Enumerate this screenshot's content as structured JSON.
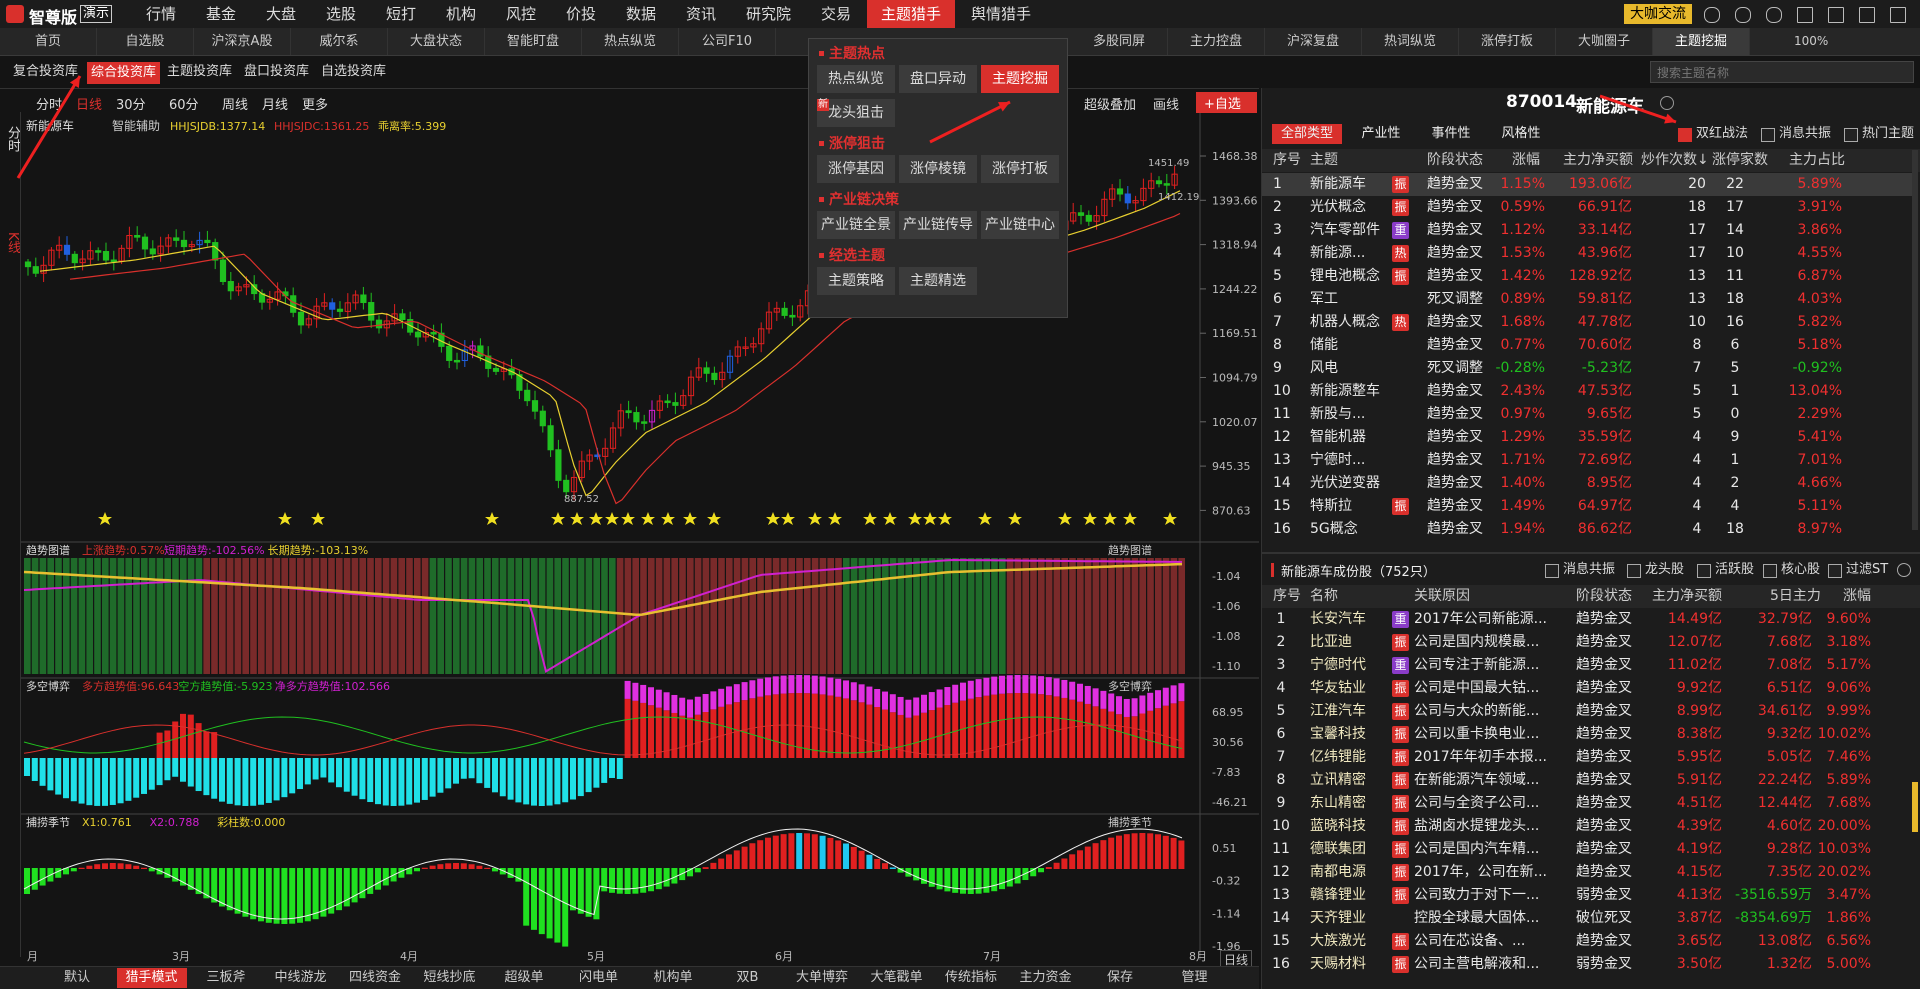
{
  "app": {
    "logo": "智尊版",
    "demo": "演示",
    "menu": [
      "行情",
      "基金",
      "大盘",
      "选股",
      "短打",
      "机构",
      "风控",
      "价投",
      "数据",
      "资讯",
      "研究院",
      "交易",
      {
        "label": "主题猎手",
        "active": true
      },
      "舆情猎手"
    ],
    "exchange": "大咖交流",
    "zoom": "100%"
  },
  "tabs": {
    "left": [
      "首页",
      "自选股",
      "沪深京A股",
      "威尔系",
      "大盘状态",
      "智能盯盘",
      "热点纵览",
      "公司F10"
    ],
    "right": [
      "多股同屏",
      "主力控盘",
      "沪深复盘",
      "热词纵览",
      "涨停打板",
      "大咖圈子",
      {
        "label": "主题挖掘",
        "active": true
      }
    ]
  },
  "libraries": [
    "复合投资库",
    {
      "label": "综合投资库",
      "active": true
    },
    "主题投资库",
    "盘口投资库",
    "自选投资库"
  ],
  "search_placeholder": "搜索主题名称",
  "chart": {
    "side_tabs": [
      "分时",
      "K线"
    ],
    "periods": [
      "分时",
      {
        "label": "日线",
        "active": true
      },
      "30分",
      "60分",
      "周线",
      "月线",
      "更多"
    ],
    "overlay": "超级叠加",
    "draw_line": "画线",
    "add_watch": "+自选",
    "name": "新能源车",
    "assist": "智能辅助",
    "indicators": [
      "HHJSJDB:1377.14",
      "HHJSJDC:1361.25",
      "乖离率:5.399"
    ],
    "price_ticks": [
      "1468.38",
      "1393.66",
      "1318.94",
      "1244.22",
      "1169.51",
      "1094.79",
      "1020.07",
      "945.35",
      "870.63"
    ],
    "high": "1451.49",
    "low": "887.52",
    "last": "1412.19",
    "panes": [
      {
        "title": "趋势图谱",
        "items": [
          "上涨趋势:0.57%",
          "短期趋势:-102.56%",
          "长期趋势:-103.13%"
        ],
        "ticks": [
          "-1.04",
          "-1.06",
          "-1.08",
          "-1.10"
        ]
      },
      {
        "title": "多空博弈",
        "items": [
          "多方趋势值:96.643",
          "空方趋势值:-5.923",
          "净多方趋势值:102.566"
        ],
        "ticks": [
          "68.95",
          "30.56",
          "-7.83",
          "-46.21"
        ]
      },
      {
        "title": "捕捞季节",
        "items": [
          "X1:0.761",
          "X2:0.788",
          "彩柱数:0.000"
        ],
        "ticks": [
          "0.51",
          "-0.32",
          "-1.14",
          "-1.96"
        ]
      }
    ],
    "months": [
      "月",
      "3月",
      "4月",
      "5月",
      "6月",
      "7月",
      "8月"
    ],
    "period": "日线"
  },
  "popup": {
    "sections": [
      {
        "title": "主题热点",
        "items": [
          "热点纵览",
          "盘口异动",
          {
            "label": "主题挖掘",
            "active": true
          },
          {
            "label": "龙头狙击",
            "badge": "新"
          }
        ]
      },
      {
        "title": "涨停狙击",
        "items": [
          "涨停基因",
          "涨停棱镜",
          "涨停打板"
        ]
      },
      {
        "title": "产业链决策",
        "items": [
          "产业链全景",
          "产业链传导",
          "产业链中心"
        ]
      },
      {
        "title": "经选主题",
        "items": [
          "主题策略",
          "主题精选"
        ]
      }
    ]
  },
  "theme_panel": {
    "code": "870014",
    "name": "新能源车",
    "types": [
      {
        "label": "全部类型",
        "active": true
      },
      "产业性",
      "事件性",
      "风格性"
    ],
    "options": [
      {
        "label": "双红战法",
        "checked": true
      },
      {
        "label": "消息共振",
        "checked": false
      },
      {
        "label": "热门主题",
        "checked": false
      }
    ],
    "columns": [
      "序号",
      "主题",
      "阶段状态",
      "涨幅",
      "主力净买额",
      "炒作次数↓",
      "涨停家数",
      "主力占比"
    ],
    "rows": [
      {
        "no": 1,
        "name": "新能源车",
        "tag": "振",
        "stage": "趋势金叉",
        "change": "1.15%",
        "net": "193.06亿",
        "times": 20,
        "limit": 22,
        "ratio": "5.89%"
      },
      {
        "no": 2,
        "name": "光伏概念",
        "tag": "振",
        "stage": "趋势金叉",
        "change": "0.59%",
        "net": "66.91亿",
        "times": 18,
        "limit": 17,
        "ratio": "3.91%"
      },
      {
        "no": 3,
        "name": "汽车零部件",
        "tag": "重",
        "stage": "趋势金叉",
        "change": "1.12%",
        "net": "33.14亿",
        "times": 17,
        "limit": 14,
        "ratio": "3.86%"
      },
      {
        "no": 4,
        "name": "新能源...",
        "tag": "热",
        "stage": "趋势金叉",
        "change": "1.53%",
        "net": "43.96亿",
        "times": 17,
        "limit": 10,
        "ratio": "4.55%"
      },
      {
        "no": 5,
        "name": "锂电池概念",
        "tag": "振",
        "stage": "趋势金叉",
        "change": "1.42%",
        "net": "128.92亿",
        "times": 13,
        "limit": 11,
        "ratio": "6.87%"
      },
      {
        "no": 6,
        "name": "军工",
        "stage": "死叉调整",
        "change": "0.89%",
        "net": "59.81亿",
        "times": 13,
        "limit": 18,
        "ratio": "4.03%"
      },
      {
        "no": 7,
        "name": "机器人概念",
        "tag": "热",
        "stage": "趋势金叉",
        "change": "1.68%",
        "net": "47.78亿",
        "times": 10,
        "limit": 16,
        "ratio": "5.82%"
      },
      {
        "no": 8,
        "name": "储能",
        "stage": "趋势金叉",
        "change": "0.77%",
        "net": "70.60亿",
        "times": 8,
        "limit": 6,
        "ratio": "5.18%"
      },
      {
        "no": 9,
        "name": "风电",
        "stage": "死叉调整",
        "change": "-0.28%",
        "net": "-5.23亿",
        "times": 7,
        "limit": 5,
        "ratio": "-0.92%"
      },
      {
        "no": 10,
        "name": "新能源整车",
        "stage": "趋势金叉",
        "change": "2.43%",
        "net": "47.53亿",
        "times": 5,
        "limit": 1,
        "ratio": "13.04%"
      },
      {
        "no": 11,
        "name": "新股与...",
        "stage": "趋势金叉",
        "change": "0.97%",
        "net": "9.65亿",
        "times": 5,
        "limit": 0,
        "ratio": "2.29%"
      },
      {
        "no": 12,
        "name": "智能机器",
        "stage": "趋势金叉",
        "change": "1.29%",
        "net": "35.59亿",
        "times": 4,
        "limit": 9,
        "ratio": "5.41%"
      },
      {
        "no": 13,
        "name": "宁德时...",
        "stage": "趋势金叉",
        "change": "1.71%",
        "net": "72.69亿",
        "times": 4,
        "limit": 1,
        "ratio": "7.01%"
      },
      {
        "no": 14,
        "name": "光伏逆变器",
        "stage": "趋势金叉",
        "change": "1.40%",
        "net": "8.95亿",
        "times": 4,
        "limit": 2,
        "ratio": "4.66%"
      },
      {
        "no": 15,
        "name": "特斯拉",
        "tag": "振",
        "stage": "趋势金叉",
        "change": "1.49%",
        "net": "64.97亿",
        "times": 4,
        "limit": 4,
        "ratio": "5.11%"
      },
      {
        "no": 16,
        "name": "5G概念",
        "stage": "趋势金叉",
        "change": "1.94%",
        "net": "86.62亿",
        "times": 4,
        "limit": 18,
        "ratio": "8.97%"
      }
    ]
  },
  "stock_panel": {
    "title": "新能源车成份股（752只）",
    "options": [
      "消息共振",
      "龙头股",
      "活跃股",
      "核心股",
      "过滤ST"
    ],
    "columns": [
      "序号",
      "名称",
      "关联原因",
      "阶段状态",
      "主力净买额",
      "5日主力",
      "涨幅"
    ],
    "rows": [
      {
        "no": 1,
        "name": "长安汽车",
        "tag": "重",
        "reason": "2017年公司新能源...",
        "stage": "趋势金叉",
        "net": "14.49亿",
        "net5": "32.79亿",
        "change": "9.60%"
      },
      {
        "no": 2,
        "name": "比亚迪",
        "tag": "振",
        "reason": "公司是国内规模最...",
        "stage": "趋势金叉",
        "net": "12.07亿",
        "net5": "7.68亿",
        "change": "3.18%"
      },
      {
        "no": 3,
        "name": "宁德时代",
        "tag": "重",
        "reason": "公司专注于新能源...",
        "stage": "趋势金叉",
        "net": "11.02亿",
        "net5": "7.08亿",
        "change": "5.17%"
      },
      {
        "no": 4,
        "name": "华友钴业",
        "tag": "振",
        "reason": "公司是中国最大钴...",
        "stage": "趋势金叉",
        "net": "9.92亿",
        "net5": "6.51亿",
        "change": "9.06%"
      },
      {
        "no": 5,
        "name": "江淮汽车",
        "tag": "振",
        "reason": "公司与大众的新能...",
        "stage": "趋势金叉",
        "net": "8.99亿",
        "net5": "34.61亿",
        "change": "9.99%"
      },
      {
        "no": 6,
        "name": "宝馨科技",
        "tag": "振",
        "reason": "公司以重卡换电业...",
        "stage": "趋势金叉",
        "net": "8.38亿",
        "net5": "9.32亿",
        "change": "10.02%"
      },
      {
        "no": 7,
        "name": "亿纬锂能",
        "tag": "振",
        "reason": "2017年年初手本报...",
        "stage": "趋势金叉",
        "net": "5.95亿",
        "net5": "5.05亿",
        "change": "7.46%"
      },
      {
        "no": 8,
        "name": "立讯精密",
        "tag": "振",
        "reason": "在新能源汽车领域...",
        "stage": "趋势金叉",
        "net": "5.91亿",
        "net5": "22.24亿",
        "change": "5.89%"
      },
      {
        "no": 9,
        "name": "东山精密",
        "tag": "振",
        "reason": "公司与全资子公司...",
        "stage": "趋势金叉",
        "net": "4.51亿",
        "net5": "12.44亿",
        "change": "7.68%"
      },
      {
        "no": 10,
        "name": "蓝晓科技",
        "tag": "振",
        "reason": "盐湖卤水提锂龙头...",
        "stage": "趋势金叉",
        "net": "4.39亿",
        "net5": "4.60亿",
        "change": "20.00%"
      },
      {
        "no": 11,
        "name": "德联集团",
        "tag": "振",
        "reason": "公司是国内汽车精...",
        "stage": "趋势金叉",
        "net": "4.19亿",
        "net5": "9.28亿",
        "change": "10.03%"
      },
      {
        "no": 12,
        "name": "南都电源",
        "tag": "振",
        "reason": "2017年，公司在新...",
        "stage": "趋势金叉",
        "net": "4.15亿",
        "net5": "7.35亿",
        "change": "20.02%"
      },
      {
        "no": 13,
        "name": "赣锋锂业",
        "tag": "振",
        "reason": "公司致力于对下一...",
        "stage": "弱势金叉",
        "net": "4.13亿",
        "net5": "-3516.59万",
        "change": "3.47%"
      },
      {
        "no": 14,
        "name": "天齐锂业",
        "reason": "控股全球最大固体...",
        "stage": "破位死叉",
        "net": "3.87亿",
        "net5": "-8354.69万",
        "change": "1.86%"
      },
      {
        "no": 15,
        "name": "大族激光",
        "tag": "振",
        "reason": "公司在芯设备、...",
        "stage": "趋势金叉",
        "net": "3.65亿",
        "net5": "13.08亿",
        "change": "6.56%"
      },
      {
        "no": 16,
        "name": "天赐材料",
        "tag": "振",
        "reason": "公司主营电解液和...",
        "stage": "弱势金叉",
        "net": "3.50亿",
        "net5": "1.32亿",
        "change": "5.00%"
      }
    ]
  },
  "bottom_tabs": [
    "默认",
    {
      "label": "猎手模式",
      "active": true
    },
    "三板斧",
    "中线游龙",
    "四线资金",
    "短线抄底",
    "超级单",
    "闪电单",
    "机构单",
    "双B",
    "大单博弈",
    "大笔戳单",
    "传统指标",
    "主力资金",
    "保存",
    "管理"
  ]
}
